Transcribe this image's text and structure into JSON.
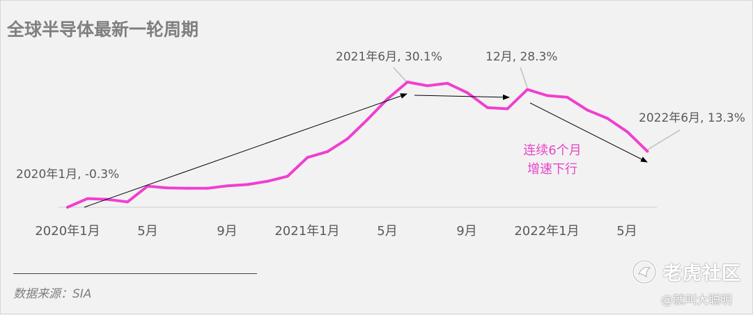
{
  "title": "全球半导体最新一轮周期",
  "chart_data": {
    "type": "line",
    "series": [
      {
        "values": [
          -0.3,
          1.8,
          1.6,
          1.0,
          4.8,
          4.4,
          4.3,
          4.3,
          4.9,
          5.2,
          6.0,
          7.2,
          11.8,
          13.2,
          16.3,
          21.0,
          26.0,
          30.1,
          29.2,
          29.8,
          27.5,
          23.9,
          23.6,
          28.3,
          26.8,
          26.4,
          23.3,
          21.3,
          18.0,
          13.3
        ],
        "color": "#f03fd0"
      }
    ],
    "x_tick_labels": [
      "2020年1月",
      "5月",
      "9月",
      "2021年1月",
      "5月",
      "9月",
      "2022年1月",
      "5月"
    ],
    "ylim": [
      -0.3,
      30.1
    ],
    "grid": false,
    "legend": "none"
  },
  "annotations": {
    "start": "2020年1月, -0.3%",
    "peak": "2021年6月, 30.1%",
    "second_peak": "12月, 28.3%",
    "end": "2022年6月, 13.3%",
    "trend_note_line1": "连续6个月",
    "trend_note_line2": "增速下行"
  },
  "source": "数据来源：SIA",
  "watermark": {
    "brand": "老虎社区",
    "handle": "@就叫大聪明",
    "icon": "tiger-logo-icon"
  },
  "colors": {
    "line": "#f03fd0",
    "annotation_text": "#e646c8",
    "axis": "#d9d9d9",
    "background": "#f2f2f2"
  }
}
